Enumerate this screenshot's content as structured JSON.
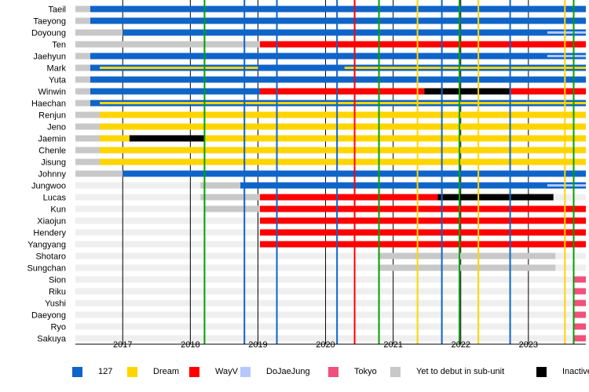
{
  "chart_data": {
    "type": "timeline",
    "x_axis": {
      "range": [
        2016.3,
        2023.85
      ],
      "ticks": [
        "2017",
        "2018",
        "2019",
        "2020",
        "2021",
        "2022",
        "2023"
      ]
    },
    "colors": {
      "127": "#0f64c8",
      "Dream": "#ffd500",
      "WayV": "#ff0000",
      "DoJaeJung": "#b4c8ff",
      "Tokyo": "#f0507a",
      "Yet to debut in sub-unit": "#c8c8c8",
      "Inactive": "#000000"
    },
    "legend": [
      {
        "key": "127",
        "label": "127"
      },
      {
        "key": "Dream",
        "label": "Dream"
      },
      {
        "key": "WayV",
        "label": "WayV"
      },
      {
        "key": "DoJaeJung",
        "label": "DoJaeJung"
      },
      {
        "key": "Tokyo",
        "label": "Tokyo"
      },
      {
        "key": "Yet to debut in sub-unit",
        "label": "Yet to debut in sub-unit"
      },
      {
        "key": "Inactive",
        "label": "Inactive"
      }
    ],
    "release_lines": [
      {
        "x": 2018.21,
        "color": "#00a000"
      },
      {
        "x": 2018.8,
        "color": "#0f64c8"
      },
      {
        "x": 2019.28,
        "color": "#0f64c8"
      },
      {
        "x": 2020.17,
        "color": "#0f64c8"
      },
      {
        "x": 2020.43,
        "color": "#ff0000"
      },
      {
        "x": 2020.79,
        "color": "#00a000"
      },
      {
        "x": 2021.36,
        "color": "#ffd500"
      },
      {
        "x": 2021.72,
        "color": "#0f64c8"
      },
      {
        "x": 2021.98,
        "color": "#00a000"
      },
      {
        "x": 2022.26,
        "color": "#ffd500"
      },
      {
        "x": 2022.73,
        "color": "#0f64c8"
      },
      {
        "x": 2023.54,
        "color": "#ffd500"
      },
      {
        "x": 2023.67,
        "color": "#00a000"
      }
    ],
    "members": [
      {
        "name": "Taeil",
        "bars": [
          {
            "start": 2016.3,
            "end": 2016.52,
            "group": "Yet to debut in sub-unit"
          },
          {
            "start": 2016.52,
            "end": 2023.85,
            "group": "127"
          }
        ]
      },
      {
        "name": "Taeyong",
        "bars": [
          {
            "start": 2016.3,
            "end": 2016.52,
            "group": "Yet to debut in sub-unit"
          },
          {
            "start": 2016.52,
            "end": 2023.85,
            "group": "127"
          }
        ]
      },
      {
        "name": "Doyoung",
        "bars": [
          {
            "start": 2016.3,
            "end": 2017.0,
            "group": "Yet to debut in sub-unit"
          },
          {
            "start": 2017.0,
            "end": 2023.85,
            "group": "127"
          }
        ],
        "stripes": [
          {
            "start": 2023.28,
            "end": 2023.85,
            "group": "DoJaeJung"
          }
        ]
      },
      {
        "name": "Ten",
        "bars": [
          {
            "start": 2016.3,
            "end": 2019.03,
            "group": "Yet to debut in sub-unit"
          },
          {
            "start": 2019.03,
            "end": 2023.85,
            "group": "WayV"
          }
        ]
      },
      {
        "name": "Jaehyun",
        "bars": [
          {
            "start": 2016.3,
            "end": 2016.52,
            "group": "Yet to debut in sub-unit"
          },
          {
            "start": 2016.52,
            "end": 2023.85,
            "group": "127"
          }
        ],
        "stripes": [
          {
            "start": 2023.28,
            "end": 2023.85,
            "group": "DoJaeJung"
          }
        ]
      },
      {
        "name": "Mark",
        "bars": [
          {
            "start": 2016.3,
            "end": 2016.52,
            "group": "Yet to debut in sub-unit"
          },
          {
            "start": 2016.52,
            "end": 2023.85,
            "group": "127"
          }
        ],
        "stripes": [
          {
            "start": 2016.66,
            "end": 2019.0,
            "group": "Dream"
          },
          {
            "start": 2020.28,
            "end": 2023.85,
            "group": "Dream"
          }
        ]
      },
      {
        "name": "Yuta",
        "bars": [
          {
            "start": 2016.3,
            "end": 2016.52,
            "group": "Yet to debut in sub-unit"
          },
          {
            "start": 2016.52,
            "end": 2023.85,
            "group": "127"
          }
        ]
      },
      {
        "name": "Winwin",
        "bars": [
          {
            "start": 2016.3,
            "end": 2016.52,
            "group": "Yet to debut in sub-unit"
          },
          {
            "start": 2016.52,
            "end": 2019.03,
            "group": "127"
          },
          {
            "start": 2019.03,
            "end": 2021.46,
            "group": "WayV"
          },
          {
            "start": 2021.46,
            "end": 2022.72,
            "group": "Inactive"
          },
          {
            "start": 2022.72,
            "end": 2023.85,
            "group": "WayV"
          }
        ]
      },
      {
        "name": "Haechan",
        "bars": [
          {
            "start": 2016.3,
            "end": 2016.52,
            "group": "Yet to debut in sub-unit"
          },
          {
            "start": 2016.52,
            "end": 2023.85,
            "group": "127"
          }
        ],
        "stripes": [
          {
            "start": 2016.66,
            "end": 2023.85,
            "group": "Dream"
          }
        ]
      },
      {
        "name": "Renjun",
        "bars": [
          {
            "start": 2016.3,
            "end": 2016.66,
            "group": "Yet to debut in sub-unit"
          },
          {
            "start": 2016.66,
            "end": 2023.85,
            "group": "Dream"
          }
        ]
      },
      {
        "name": "Jeno",
        "bars": [
          {
            "start": 2016.3,
            "end": 2016.66,
            "group": "Yet to debut in sub-unit"
          },
          {
            "start": 2016.66,
            "end": 2023.85,
            "group": "Dream"
          }
        ]
      },
      {
        "name": "Jaemin",
        "bars": [
          {
            "start": 2016.3,
            "end": 2016.66,
            "group": "Yet to debut in sub-unit"
          },
          {
            "start": 2016.66,
            "end": 2017.1,
            "group": "Dream"
          },
          {
            "start": 2017.1,
            "end": 2018.2,
            "group": "Inactive"
          },
          {
            "start": 2018.2,
            "end": 2023.85,
            "group": "Dream"
          }
        ]
      },
      {
        "name": "Chenle",
        "bars": [
          {
            "start": 2016.3,
            "end": 2016.66,
            "group": "Yet to debut in sub-unit"
          },
          {
            "start": 2016.66,
            "end": 2023.85,
            "group": "Dream"
          }
        ]
      },
      {
        "name": "Jisung",
        "bars": [
          {
            "start": 2016.3,
            "end": 2016.66,
            "group": "Yet to debut in sub-unit"
          },
          {
            "start": 2016.66,
            "end": 2023.85,
            "group": "Dream"
          }
        ]
      },
      {
        "name": "Johnny",
        "bars": [
          {
            "start": 2016.3,
            "end": 2017.0,
            "group": "Yet to debut in sub-unit"
          },
          {
            "start": 2017.0,
            "end": 2023.85,
            "group": "127"
          }
        ]
      },
      {
        "name": "Jungwoo",
        "bars": [
          {
            "start": 2018.15,
            "end": 2018.74,
            "group": "Yet to debut in sub-unit"
          },
          {
            "start": 2018.74,
            "end": 2023.85,
            "group": "127"
          }
        ],
        "stripes": [
          {
            "start": 2023.28,
            "end": 2023.85,
            "group": "DoJaeJung"
          }
        ]
      },
      {
        "name": "Lucas",
        "bars": [
          {
            "start": 2018.15,
            "end": 2019.03,
            "group": "Yet to debut in sub-unit"
          },
          {
            "start": 2019.03,
            "end": 2021.66,
            "group": "WayV"
          },
          {
            "start": 2021.66,
            "end": 2023.37,
            "group": "Inactive"
          }
        ]
      },
      {
        "name": "Kun",
        "bars": [
          {
            "start": 2018.22,
            "end": 2019.03,
            "group": "Yet to debut in sub-unit"
          },
          {
            "start": 2019.03,
            "end": 2023.85,
            "group": "WayV"
          }
        ]
      },
      {
        "name": "Xiaojun",
        "bars": [
          {
            "start": 2019.03,
            "end": 2023.85,
            "group": "WayV"
          }
        ]
      },
      {
        "name": "Hendery",
        "bars": [
          {
            "start": 2019.03,
            "end": 2023.85,
            "group": "WayV"
          }
        ]
      },
      {
        "name": "Yangyang",
        "bars": [
          {
            "start": 2019.03,
            "end": 2023.85,
            "group": "WayV"
          }
        ]
      },
      {
        "name": "Shotaro",
        "bars": [
          {
            "start": 2020.78,
            "end": 2023.4,
            "group": "Yet to debut in sub-unit"
          }
        ]
      },
      {
        "name": "Sungchan",
        "bars": [
          {
            "start": 2020.78,
            "end": 2023.4,
            "group": "Yet to debut in sub-unit"
          }
        ]
      },
      {
        "name": "Sion",
        "bars": [
          {
            "start": 2023.68,
            "end": 2023.85,
            "group": "Tokyo"
          }
        ]
      },
      {
        "name": "Riku",
        "bars": [
          {
            "start": 2023.68,
            "end": 2023.85,
            "group": "Tokyo"
          }
        ]
      },
      {
        "name": "Yushi",
        "bars": [
          {
            "start": 2023.68,
            "end": 2023.85,
            "group": "Tokyo"
          }
        ]
      },
      {
        "name": "Daeyong",
        "bars": [
          {
            "start": 2023.68,
            "end": 2023.85,
            "group": "Tokyo"
          }
        ]
      },
      {
        "name": "Ryo",
        "bars": [
          {
            "start": 2023.68,
            "end": 2023.85,
            "group": "Tokyo"
          }
        ]
      },
      {
        "name": "Sakuya",
        "bars": [
          {
            "start": 2023.68,
            "end": 2023.85,
            "group": "Tokyo"
          }
        ]
      }
    ]
  }
}
